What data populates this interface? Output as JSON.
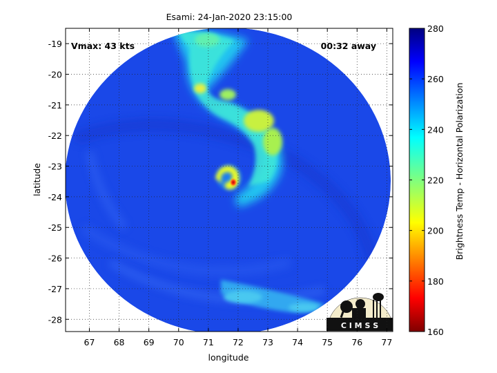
{
  "title": "Esami: 24-Jan-2020 23:15:00",
  "annotations": {
    "vmax": "Vmax: 43 kts",
    "time_away": "00:32 away"
  },
  "axes": {
    "xlabel": "longitude",
    "ylabel": "latitude",
    "x_ticks": [
      "67",
      "68",
      "69",
      "70",
      "71",
      "72",
      "73",
      "74",
      "75",
      "76",
      "77"
    ],
    "y_ticks": [
      "-19",
      "-20",
      "-21",
      "-22",
      "-23",
      "-24",
      "-25",
      "-26",
      "-27",
      "-28"
    ],
    "xlim": [
      66.2,
      77.2
    ],
    "ylim": [
      -28.4,
      -18.5
    ],
    "grid": "dotted"
  },
  "colorbar": {
    "label": "Brightness Temp - Horizontal Polarization",
    "ticks": [
      "280",
      "260",
      "240",
      "220",
      "200",
      "180",
      "160"
    ],
    "range": [
      160,
      280
    ],
    "colormap": "jet"
  },
  "storm_center": {
    "lon": 71.8,
    "lat": -23.6
  },
  "logo_text": "C I M S S",
  "colors": {
    "background_cold": "#1846e6",
    "eyewall_warm": "#f0ff1e",
    "eye_core": "#e8301a"
  }
}
